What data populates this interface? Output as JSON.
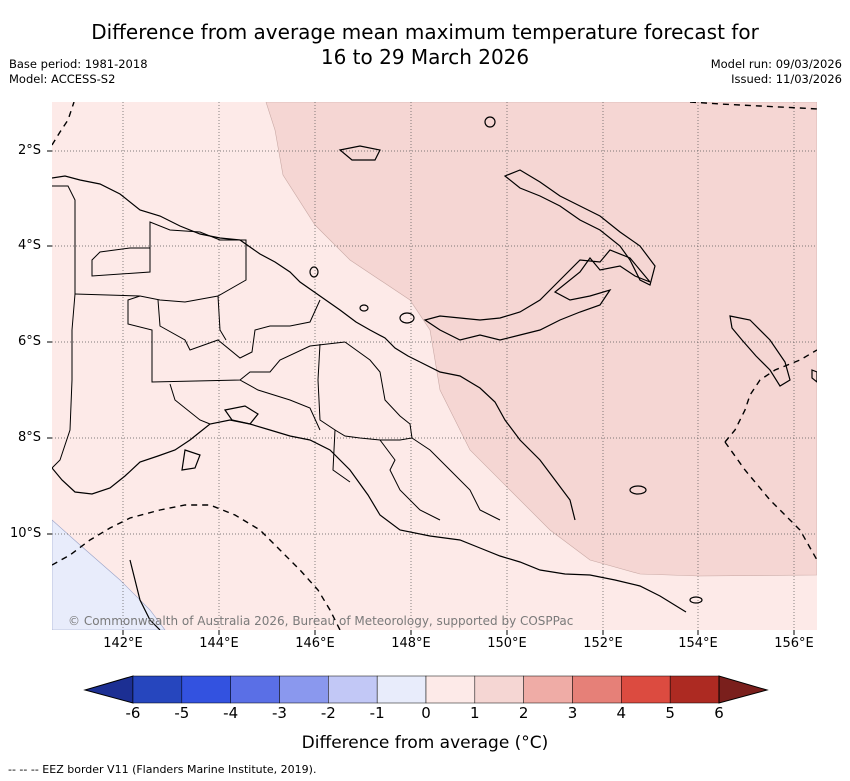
{
  "title": {
    "line1": "Difference from average mean maximum temperature forecast for",
    "line2": "16 to 29 March 2026"
  },
  "meta": {
    "base_period": "Base period: 1981-2018",
    "model": "Model: ACCESS-S2",
    "model_run": "Model run: 09/03/2026",
    "issued": "Issued: 11/03/2026"
  },
  "map": {
    "lat_labels": [
      "2°S",
      "4°S",
      "6°S",
      "8°S",
      "10°S"
    ],
    "lon_labels": [
      "142°E",
      "144°E",
      "146°E",
      "148°E",
      "150°E",
      "152°E",
      "154°E",
      "156°E"
    ],
    "copyright": "© Commonwealth of Australia 2026, Bureau of Meteorology, supported by COSPPac",
    "colors": {
      "anomaly_0_1": "#fdeae8",
      "anomaly_1_2": "#f5d6d3",
      "anomaly_m1_0": "#e8ecfb"
    }
  },
  "colorbar": {
    "ticks": [
      "-6",
      "-5",
      "-4",
      "-3",
      "-2",
      "-1",
      "0",
      "1",
      "2",
      "3",
      "4",
      "5",
      "6"
    ],
    "colors": [
      "#1c2f93",
      "#2646be",
      "#3352e0",
      "#5a6fe6",
      "#8a98ee",
      "#c2c8f6",
      "#e8ecfb",
      "#fdeae8",
      "#f5d6d3",
      "#efaca6",
      "#e68078",
      "#dc4b40",
      "#ad2a22",
      "#7a1f1c"
    ],
    "label": "Difference from average (°C)"
  },
  "footnote": "-- -- -- EEZ border V11 (Flanders Marine Institute, 2019)."
}
